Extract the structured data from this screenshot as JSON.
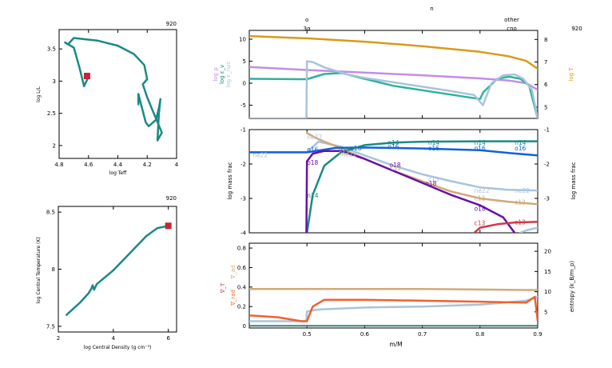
{
  "model_number": "920",
  "colors": {
    "teal": "#1a8a82",
    "red": "#cc2233",
    "lilac": "#c48ce8",
    "goldenrod": "#d99a1a",
    "lightblue": "#a8c4dc",
    "seagreen": "#2cb39a",
    "purple": "#6a10a8",
    "blue": "#1060e0",
    "tan": "#d0aa7a",
    "orange": "#f26030",
    "crimson": "#d03848",
    "gray": "#888888"
  },
  "chart_data": [
    {
      "id": "hr",
      "type": "line",
      "title": "920",
      "xlabel": "log Teff",
      "ylabel": "log L/L_sun",
      "xlim": [
        4.8,
        4.0
      ],
      "ylim": [
        1.8,
        3.8
      ],
      "xticks": [
        "4.8",
        "4.6",
        "4.4",
        "4.2",
        "4"
      ],
      "yticks": [
        "2",
        "2.5",
        "3",
        "3.5"
      ],
      "series": [
        {
          "x": [
            4.62,
            4.6,
            4.63,
            4.66,
            4.7,
            4.76,
            4.74,
            4.7,
            4.54,
            4.4,
            4.29,
            4.22,
            4.2,
            4.23,
            4.2,
            4.17,
            4.1,
            4.13,
            4.12,
            4.11,
            4.12,
            4.14,
            4.19,
            4.21,
            4.26,
            4.26
          ],
          "y": [
            3.08,
            3.07,
            2.92,
            3.2,
            3.52,
            3.6,
            3.57,
            3.67,
            3.63,
            3.55,
            3.42,
            3.25,
            3.03,
            2.95,
            2.75,
            2.58,
            2.2,
            2.08,
            2.5,
            2.72,
            2.58,
            2.4,
            2.3,
            2.36,
            2.8,
            2.64
          ]
        }
      ],
      "current": {
        "x": 4.61,
        "y": 3.08
      }
    },
    {
      "id": "rhoT",
      "type": "line",
      "title": "920",
      "xlabel": "log Central Density (g cm^-3)",
      "ylabel": "log Central Temperature (K)",
      "xlim": [
        2,
        6.3
      ],
      "ylim": [
        7.45,
        8.55
      ],
      "xticks": [
        "2",
        "4",
        "6"
      ],
      "yticks": [
        "7.5",
        "8",
        "8.5"
      ],
      "series": [
        {
          "x": [
            2.3,
            2.8,
            3.1,
            3.2,
            3.25,
            3.3,
            3.4,
            4.0,
            4.6,
            5.2,
            5.6,
            6.0,
            6.05
          ],
          "y": [
            7.6,
            7.71,
            7.79,
            7.83,
            7.86,
            7.82,
            7.87,
            7.99,
            8.14,
            8.29,
            8.36,
            8.38,
            8.38
          ]
        }
      ],
      "current": {
        "x": 6.0,
        "y": 8.38
      }
    },
    {
      "id": "top",
      "type": "line",
      "xlim": [
        0.4,
        0.9
      ],
      "top_labels": [
        {
          "x": 0.5,
          "upper": "o",
          "lower": "3α"
        },
        {
          "x": 0.855,
          "upper": "other",
          "lower": "cno"
        }
      ],
      "header_label": "n",
      "left_ylim": [
        -8,
        12
      ],
      "left_yticks": [
        "-5",
        "0",
        "5",
        "10"
      ],
      "right_ylim": [
        4.5,
        8.4
      ],
      "right_yticks": [
        "5",
        "6",
        "7",
        "8"
      ],
      "left_ylabels": [
        "log ρ",
        "log ε_ν",
        "log ε_nuc"
      ],
      "right_ylabel": "log T",
      "series": [
        {
          "axis": "right",
          "color": "goldenrod",
          "x": [
            0.4,
            0.5,
            0.6,
            0.7,
            0.8,
            0.85,
            0.88,
            0.9
          ],
          "y": [
            8.15,
            8.05,
            7.9,
            7.7,
            7.45,
            7.25,
            7.05,
            6.7
          ]
        },
        {
          "axis": "left",
          "color": "lilac",
          "x": [
            0.4,
            0.5,
            0.6,
            0.7,
            0.8,
            0.85,
            0.88,
            0.9
          ],
          "y": [
            3.7,
            3.0,
            2.4,
            1.8,
            1.1,
            0.6,
            0.0,
            -1.5
          ]
        },
        {
          "axis": "left",
          "color": "seagreen",
          "x": [
            0.4,
            0.49,
            0.5,
            0.53,
            0.56,
            0.6,
            0.65,
            0.7,
            0.75,
            0.8,
            0.806,
            0.83,
            0.85,
            0.87,
            0.885,
            0.9
          ],
          "y": [
            1.0,
            0.9,
            0.9,
            2.1,
            2.3,
            1.0,
            -0.6,
            -1.6,
            -2.6,
            -3.6,
            -2.0,
            1.0,
            1.5,
            1.0,
            -0.5,
            -8.0
          ]
        },
        {
          "axis": "left",
          "color": "lightblue",
          "x": [
            0.4,
            0.499,
            0.5,
            0.51,
            0.53,
            0.57,
            0.6,
            0.65,
            0.7,
            0.75,
            0.79,
            0.805,
            0.82,
            0.84,
            0.86,
            0.875,
            0.89,
            0.9
          ],
          "y": [
            -8.0,
            -8.0,
            5.0,
            4.8,
            3.6,
            2.0,
            1.2,
            0.2,
            -0.8,
            -1.8,
            -2.7,
            -5.0,
            0.0,
            1.8,
            2.0,
            1.0,
            -1.5,
            -8.0
          ]
        }
      ]
    },
    {
      "id": "mid",
      "type": "line",
      "xlim": [
        0.4,
        0.9
      ],
      "ylim": [
        -4,
        -1
      ],
      "left_yticks": [
        "-4",
        "-3",
        "-2",
        "-1"
      ],
      "right_yticks": [
        "-3",
        "-2",
        "-1"
      ],
      "ylabel": "log mass frac",
      "right_ylabel": "log mass frac",
      "series": [
        {
          "name": "ne22",
          "color": "lightblue",
          "x": [
            0.4,
            0.5,
            0.52,
            0.56,
            0.6,
            0.65,
            0.7,
            0.75,
            0.8,
            0.85,
            0.9
          ],
          "y": [
            -1.66,
            -1.66,
            -1.35,
            -1.5,
            -1.75,
            -2.05,
            -2.3,
            -2.5,
            -2.68,
            -2.75,
            -2.77
          ]
        },
        {
          "name": "c12",
          "color": "tan",
          "x": [
            0.5,
            0.52,
            0.56,
            0.6,
            0.65,
            0.7,
            0.75,
            0.8,
            0.85,
            0.9
          ],
          "y": [
            -1.1,
            -1.28,
            -1.55,
            -1.85,
            -2.2,
            -2.5,
            -2.8,
            -3.0,
            -3.1,
            -3.17
          ]
        },
        {
          "name": "o16",
          "color": "blue",
          "x": [
            0.4,
            0.5,
            0.55,
            0.6,
            0.7,
            0.8,
            0.85,
            0.9
          ],
          "y": [
            -1.66,
            -1.66,
            -1.53,
            -1.52,
            -1.55,
            -1.6,
            -1.68,
            -1.75
          ]
        },
        {
          "name": "n14",
          "color": "teal",
          "x": [
            0.5,
            0.51,
            0.53,
            0.56,
            0.6,
            0.65,
            0.7,
            0.8,
            0.9
          ],
          "y": [
            -4.0,
            -2.9,
            -2.05,
            -1.65,
            -1.45,
            -1.38,
            -1.35,
            -1.34,
            -1.34
          ]
        },
        {
          "name": "o18",
          "color": "purple",
          "x": [
            0.499,
            0.5,
            0.51,
            0.53,
            0.56,
            0.6,
            0.65,
            0.7,
            0.75,
            0.8,
            0.84,
            0.86
          ],
          "y": [
            -4.0,
            -1.92,
            -1.7,
            -1.62,
            -1.62,
            -1.85,
            -2.2,
            -2.55,
            -2.9,
            -3.2,
            -3.55,
            -4.0
          ]
        },
        {
          "name": "c13",
          "color": "crimson",
          "x": [
            0.79,
            0.8,
            0.83,
            0.86,
            0.9
          ],
          "y": [
            -4.0,
            -3.85,
            -3.75,
            -3.7,
            -3.68
          ]
        },
        {
          "name": "c13b",
          "color": "lightblue",
          "x": [
            0.87,
            0.88,
            0.9
          ],
          "y": [
            -4.0,
            -3.93,
            -3.85
          ]
        }
      ],
      "labels": [
        {
          "text": "ne22",
          "color": "lightblue",
          "x": 0.406,
          "y": -1.74
        },
        {
          "text": "ne22",
          "color": "lightblue",
          "x": 0.5,
          "y": -1.22
        },
        {
          "text": "o16",
          "color": "blue",
          "x": 0.5,
          "y": -1.58
        },
        {
          "text": "o18",
          "color": "purple",
          "x": 0.5,
          "y": -1.96
        },
        {
          "text": "n14",
          "color": "teal",
          "x": 0.5,
          "y": -2.92
        },
        {
          "text": "n14",
          "color": "teal",
          "x": 0.555,
          "y": -1.58
        },
        {
          "text": "ne22",
          "color": "lightblue",
          "x": 0.56,
          "y": -1.72
        },
        {
          "text": "o16",
          "color": "blue",
          "x": 0.575,
          "y": -1.55
        },
        {
          "text": "c12",
          "color": "tan",
          "x": 0.555,
          "y": -1.68
        },
        {
          "text": "n14",
          "color": "teal",
          "x": 0.64,
          "y": -1.38
        },
        {
          "text": "o16",
          "color": "blue",
          "x": 0.64,
          "y": -1.5
        },
        {
          "text": "o18",
          "color": "purple",
          "x": 0.643,
          "y": -2.04
        },
        {
          "text": "c12",
          "color": "tan",
          "x": 0.645,
          "y": -2.12
        },
        {
          "text": "n14",
          "color": "teal",
          "x": 0.71,
          "y": -1.38
        },
        {
          "text": "o16",
          "color": "blue",
          "x": 0.71,
          "y": -1.55
        },
        {
          "text": "c13",
          "color": "lightblue",
          "x": 0.71,
          "y": -2.45
        },
        {
          "text": "o18",
          "color": "purple",
          "x": 0.705,
          "y": -2.57
        },
        {
          "text": "n14",
          "color": "teal",
          "x": 0.79,
          "y": -1.38
        },
        {
          "text": "o16",
          "color": "blue",
          "x": 0.79,
          "y": -1.55
        },
        {
          "text": "ne22",
          "color": "lightblue",
          "x": 0.79,
          "y": -2.78
        },
        {
          "text": "c12",
          "color": "tan",
          "x": 0.79,
          "y": -3.0
        },
        {
          "text": "o18",
          "color": "purple",
          "x": 0.79,
          "y": -3.3
        },
        {
          "text": "c13",
          "color": "crimson",
          "x": 0.79,
          "y": -3.72
        },
        {
          "text": "n14",
          "color": "teal",
          "x": 0.86,
          "y": -1.38
        },
        {
          "text": "o16",
          "color": "blue",
          "x": 0.86,
          "y": -1.55
        },
        {
          "text": "ne22",
          "color": "lightblue",
          "x": 0.86,
          "y": -2.78
        },
        {
          "text": "c12",
          "color": "tan",
          "x": 0.86,
          "y": -3.12
        },
        {
          "text": "c13",
          "color": "crimson",
          "x": 0.86,
          "y": -3.7
        }
      ]
    },
    {
      "id": "bottom",
      "type": "line",
      "xlim": [
        0.4,
        0.9
      ],
      "ylim": [
        -0.02,
        0.85
      ],
      "left_yticks": [
        "0",
        "0.2",
        "0.4",
        "0.6",
        "0.8"
      ],
      "right_ylim": [
        1,
        22
      ],
      "right_yticks": [
        "5",
        "10",
        "15",
        "20"
      ],
      "xticks": [
        "0.5",
        "0.6",
        "0.7",
        "0.8",
        "0.9"
      ],
      "xlabel": "m/M_sun",
      "left_ylabels": [
        "∇_ad",
        "∇_T",
        "∇_rad"
      ],
      "right_ylabel": "entropy (k_B/m_p)",
      "series": [
        {
          "color": "tan",
          "x": [
            0.4,
            0.5,
            0.6,
            0.7,
            0.8,
            0.88,
            0.9
          ],
          "y": [
            0.38,
            0.38,
            0.38,
            0.38,
            0.375,
            0.37,
            0.37
          ]
        },
        {
          "color": "lightblue",
          "x": [
            0.4,
            0.499,
            0.5,
            0.52,
            0.6,
            0.7,
            0.8,
            0.88,
            0.9
          ],
          "y": [
            0.05,
            0.05,
            0.15,
            0.17,
            0.19,
            0.2,
            0.22,
            0.26,
            0.3
          ]
        },
        {
          "color": "orange",
          "x": [
            0.4,
            0.45,
            0.49,
            0.5,
            0.51,
            0.53,
            0.6,
            0.7,
            0.8,
            0.88,
            0.895,
            0.9
          ],
          "y": [
            0.11,
            0.09,
            0.05,
            0.05,
            0.2,
            0.27,
            0.27,
            0.26,
            0.25,
            0.24,
            0.3,
            0.05
          ]
        },
        {
          "color": "gray",
          "x": [
            0.4,
            0.9
          ],
          "y": [
            0.0,
            0.0
          ]
        },
        {
          "color": "teal",
          "x": [
            0.4,
            0.9
          ],
          "y": [
            0.005,
            0.005
          ]
        }
      ]
    }
  ]
}
